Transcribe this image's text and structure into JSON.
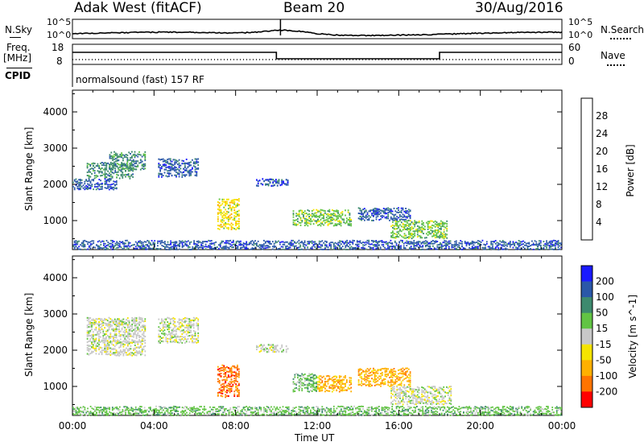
{
  "header": {
    "station": "Adak West (fitACF)",
    "beam": "Beam 20",
    "date": "30/Aug/2016"
  },
  "top_panels": {
    "nsky_label": "N.Sky",
    "nsky_ticks": [
      "10^5",
      "10^0"
    ],
    "nsearch_label": "N.Search",
    "nsearch_ticks": [
      "10^5",
      "10^0"
    ],
    "freq_label": "Freq.",
    "freq_unit": "[MHz]",
    "freq_ticks": [
      "18",
      "8"
    ],
    "nave_label": "Nave",
    "nave_ticks": [
      "60",
      "0"
    ],
    "cpid_label": "CPID",
    "cpid_text": "normalsound (fast) 157 RF"
  },
  "colors": {
    "power_scale": [
      "#1a1aff",
      "#2a57a8",
      "#3d8a6e",
      "#62c444",
      "#f5e400",
      "#ffb000",
      "#ff7400",
      "#ff0000"
    ],
    "velocity_scale": [
      "#1a1aff",
      "#2a57a8",
      "#3d8a6e",
      "#62c444",
      "#c8c8c8",
      "#f5e400",
      "#ffb000",
      "#ff7400",
      "#ff0000"
    ]
  },
  "chart_data": [
    {
      "type": "heatmap",
      "title": "",
      "xlabel": "",
      "ylabel": "Slant Range [km]",
      "x_ticks": [
        "00:00",
        "04:00",
        "08:00",
        "12:00",
        "16:00",
        "20:00",
        "00:00"
      ],
      "y_ticks": [
        1000,
        2000,
        3000,
        4000
      ],
      "xlim_hours": [
        0,
        24
      ],
      "ylim_km": [
        200,
        4600
      ],
      "colorbar": {
        "label": "Power [dB]",
        "ticks": [
          "4",
          "8",
          "12",
          "16",
          "20",
          "24",
          "28"
        ]
      },
      "patches": [
        {
          "t0": 0.0,
          "t1": 2.2,
          "r0": 1850,
          "r1": 2150,
          "level": 1
        },
        {
          "t0": 0.7,
          "t1": 3.0,
          "r0": 2150,
          "r1": 2600,
          "level": 2
        },
        {
          "t0": 1.8,
          "t1": 3.6,
          "r0": 2400,
          "r1": 2900,
          "level": 2
        },
        {
          "t0": 4.2,
          "t1": 6.2,
          "r0": 2200,
          "r1": 2700,
          "level": 1
        },
        {
          "t0": 7.1,
          "t1": 8.2,
          "r0": 750,
          "r1": 1600,
          "level": 4
        },
        {
          "t0": 9.0,
          "t1": 10.6,
          "r0": 1950,
          "r1": 2150,
          "level": 1
        },
        {
          "t0": 10.8,
          "t1": 13.7,
          "r0": 850,
          "r1": 1300,
          "level": 3
        },
        {
          "t0": 14.0,
          "t1": 16.6,
          "r0": 1000,
          "r1": 1350,
          "level": 1
        },
        {
          "t0": 15.6,
          "t1": 18.4,
          "r0": 500,
          "r1": 1000,
          "level": 3
        },
        {
          "t0": 0.0,
          "t1": 24.0,
          "r0": 200,
          "r1": 450,
          "level": 1
        }
      ]
    },
    {
      "type": "heatmap",
      "title": "",
      "xlabel": "Time UT",
      "ylabel": "Slant Range [km]",
      "x_ticks": [
        "00:00",
        "04:00",
        "08:00",
        "12:00",
        "16:00",
        "20:00",
        "00:00"
      ],
      "y_ticks": [
        1000,
        2000,
        3000,
        4000
      ],
      "xlim_hours": [
        0,
        24
      ],
      "ylim_km": [
        200,
        4600
      ],
      "colorbar": {
        "label": "Velocity [m s^-1]",
        "ticks": [
          "200",
          "100",
          "50",
          "15",
          "-15",
          "-50",
          "-100",
          "-200"
        ]
      },
      "patches": [
        {
          "t0": 0.7,
          "t1": 3.6,
          "r0": 1850,
          "r1": 2900,
          "level": 4
        },
        {
          "t0": 4.2,
          "t1": 6.2,
          "r0": 2200,
          "r1": 2900,
          "level": 4
        },
        {
          "t0": 7.1,
          "t1": 8.2,
          "r0": 700,
          "r1": 1600,
          "level": 7
        },
        {
          "t0": 9.0,
          "t1": 10.6,
          "r0": 1950,
          "r1": 2150,
          "level": 4
        },
        {
          "t0": 10.8,
          "t1": 12.0,
          "r0": 850,
          "r1": 1350,
          "level": 3
        },
        {
          "t0": 12.0,
          "t1": 13.7,
          "r0": 850,
          "r1": 1300,
          "level": 6
        },
        {
          "t0": 14.0,
          "t1": 16.6,
          "r0": 1000,
          "r1": 1500,
          "level": 6
        },
        {
          "t0": 15.6,
          "t1": 18.6,
          "r0": 500,
          "r1": 1000,
          "level": 4
        },
        {
          "t0": 0.0,
          "t1": 24.0,
          "r0": 200,
          "r1": 450,
          "level": 3
        }
      ]
    }
  ]
}
